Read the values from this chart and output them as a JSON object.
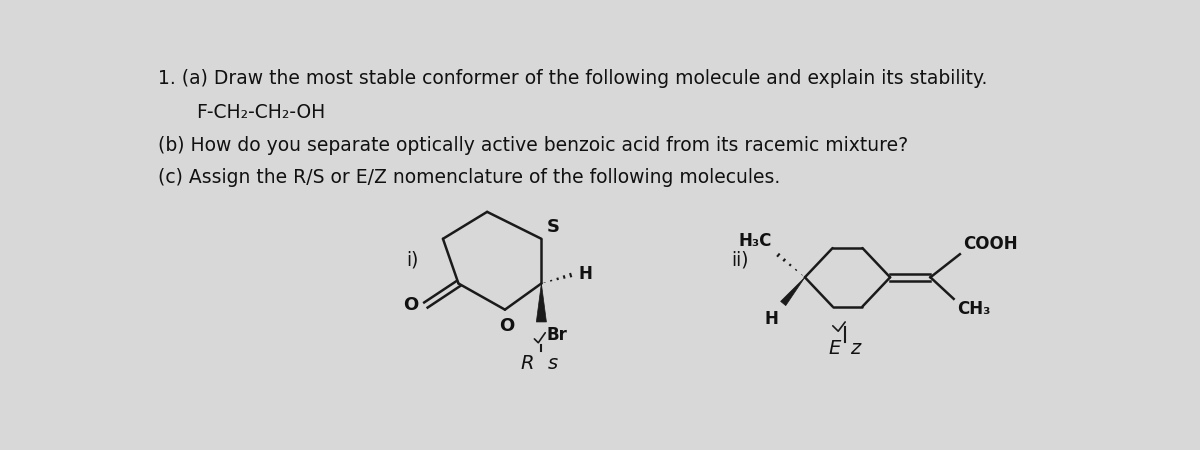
{
  "background_color": "#d8d8d8",
  "text_color": "#111111",
  "line1": "1. (a) Draw the most stable conformer of the following molecule and explain its stability.",
  "line2": "F-CH₂-CH₂-OH",
  "line3": "(b) How do you separate optically active benzoic acid from its racemic mixture?",
  "line4": "(c) Assign the R/S or E/Z nomenclature of the following molecules.",
  "fs_main": 13.5,
  "lw": 1.8,
  "col": "#1a1a1a"
}
